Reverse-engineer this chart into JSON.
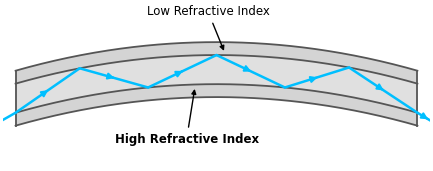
{
  "bg_color": "#ffffff",
  "fiber_fill_color": "#d4d4d4",
  "fiber_edge_color": "#555555",
  "ray_color": "#00bfff",
  "annotation_color": "#000000",
  "label_low": "Low Refractive Index",
  "label_high": "High Refractive Index",
  "label_fontsize": 8.5,
  "figsize": [
    4.33,
    1.71
  ],
  "dpi": 100,
  "xlim": [
    0,
    10
  ],
  "ylim": [
    0,
    10
  ]
}
